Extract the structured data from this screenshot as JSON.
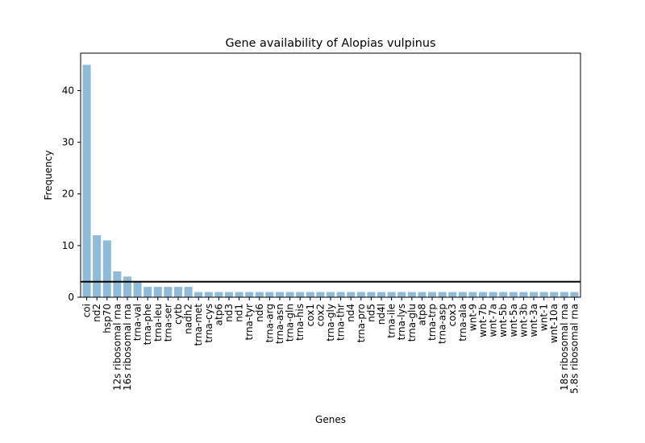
{
  "chart_data": {
    "type": "bar",
    "title": "Gene availability of Alopias vulpinus",
    "xlabel": "Genes",
    "ylabel": "Frequency",
    "ylim": [
      0,
      47.25
    ],
    "yticks": [
      0,
      10,
      20,
      30,
      40
    ],
    "bar_color": "#1f77b4",
    "bar_opacity": 0.5,
    "reference_line": {
      "y": 3,
      "color": "#000000"
    },
    "grid": false,
    "categories": [
      "coi",
      "nd2",
      "hsp70",
      "12s ribosomal rna",
      "16s ribosomal rna",
      "trna-val",
      "trna-phe",
      "trna-leu",
      "trna-ser",
      "cytb",
      "nadh2",
      "trna-met",
      "trna-cys",
      "atp6",
      "nd3",
      "nd1",
      "trna-tyr",
      "nd6",
      "trna-arg",
      "trna-asn",
      "trna-gln",
      "trna-his",
      "cox1",
      "cox2",
      "trna-gly",
      "trna-thr",
      "nd4",
      "trna-pro",
      "nd5",
      "nd4l",
      "trna-ile",
      "trna-lys",
      "trna-glu",
      "atp8",
      "trna-trp",
      "trna-asp",
      "cox3",
      "trna-ala",
      "wnt-9",
      "wnt-7b",
      "wnt-7a",
      "wnt-5b",
      "wnt-5a",
      "wnt-3b",
      "wnt-3a",
      "wnt-1",
      "wnt-10a",
      "18s ribosomal rna",
      "5.8s ribosomal rna"
    ],
    "values": [
      45,
      12,
      11,
      5,
      4,
      3,
      2,
      2,
      2,
      2,
      2,
      1,
      1,
      1,
      1,
      1,
      1,
      1,
      1,
      1,
      1,
      1,
      1,
      1,
      1,
      1,
      1,
      1,
      1,
      1,
      1,
      1,
      1,
      1,
      1,
      1,
      1,
      1,
      1,
      1,
      1,
      1,
      1,
      1,
      1,
      1,
      1,
      1,
      1
    ]
  }
}
